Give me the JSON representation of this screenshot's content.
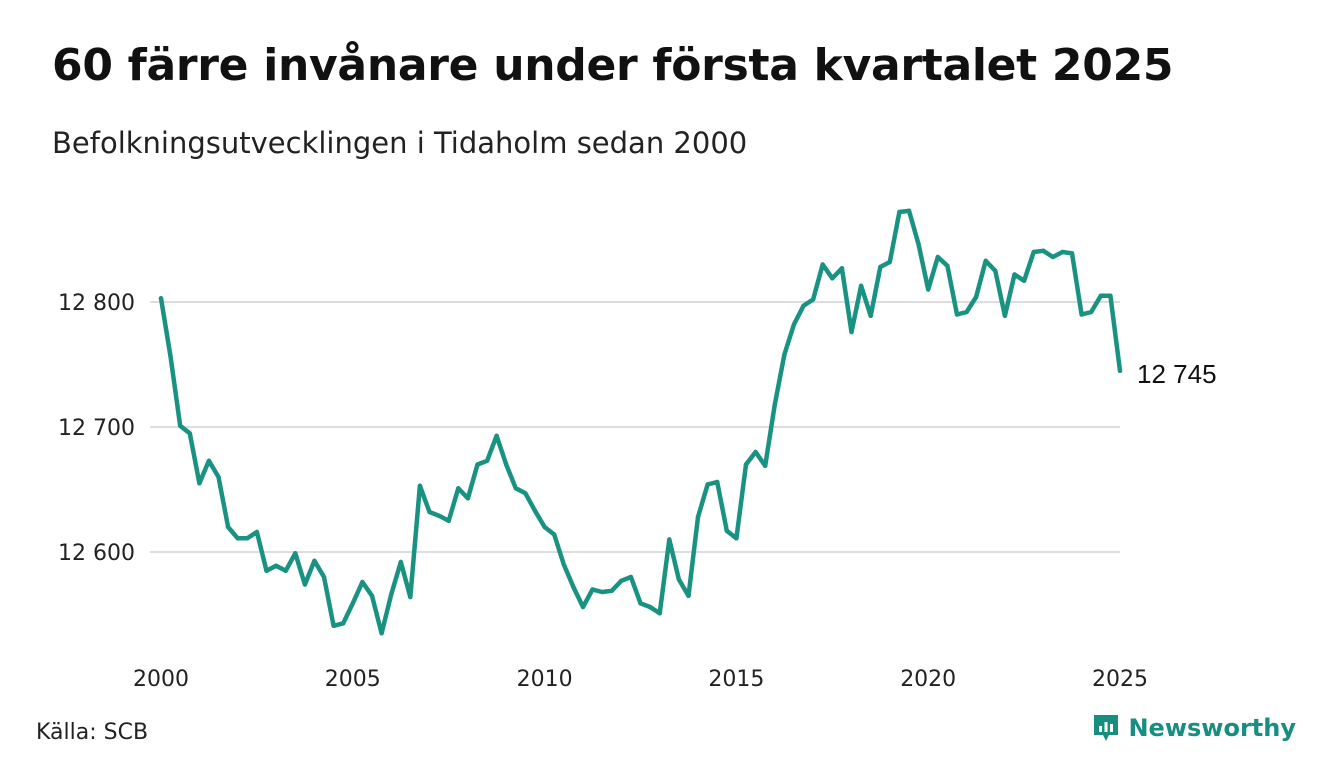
{
  "header": {
    "title": "60 färre invånare under första kvartalet 2025",
    "subtitle": "Befolkningsutvecklingen i Tidaholm sedan 2000"
  },
  "footer": {
    "source": "Källa: SCB",
    "brand": "Newsworthy",
    "brand_icon": "newsworthy-logo-icon"
  },
  "colors": {
    "line": "#1a9282",
    "grid": "#dddddd",
    "text": "#111111",
    "brand": "#178e80"
  },
  "chart_data": {
    "type": "line",
    "title": "60 färre invånare under första kvartalet 2025",
    "subtitle": "Befolkningsutvecklingen i Tidaholm sedan 2000",
    "xlabel": "",
    "ylabel": "",
    "xlim": [
      2000.0,
      2025.0
    ],
    "ylim": [
      12530,
      12880
    ],
    "grid": true,
    "x_ticks": [
      2000,
      2005,
      2010,
      2015,
      2020,
      2025
    ],
    "x_tick_labels": [
      "2000",
      "2005",
      "2010",
      "2015",
      "2020",
      "2025"
    ],
    "y_ticks": [
      12600,
      12700,
      12800
    ],
    "y_tick_labels": [
      "12 600",
      "12 700",
      "12 800"
    ],
    "end_label": "12 745",
    "series": [
      {
        "x": [
          2000.0,
          2000.25,
          2000.5,
          2000.75,
          2001.0,
          2001.25,
          2001.5,
          2001.75,
          2002.0,
          2002.25,
          2002.5,
          2002.75,
          2003.0,
          2003.25,
          2003.5,
          2003.75,
          2004.0,
          2004.25,
          2004.5,
          2004.75,
          2005.0,
          2005.25,
          2005.5,
          2005.75,
          2006.0,
          2006.25,
          2006.5,
          2006.75,
          2007.0,
          2007.25,
          2007.5,
          2007.75,
          2008.0,
          2008.25,
          2008.5,
          2008.75,
          2009.0,
          2009.25,
          2009.5,
          2009.75,
          2010.0,
          2010.25,
          2010.5,
          2010.75,
          2011.0,
          2011.25,
          2011.5,
          2011.75,
          2012.0,
          2012.25,
          2012.5,
          2012.75,
          2013.0,
          2013.25,
          2013.5,
          2013.75,
          2014.0,
          2014.25,
          2014.5,
          2014.75,
          2015.0,
          2015.25,
          2015.5,
          2015.75,
          2016.0,
          2016.25,
          2016.5,
          2016.75,
          2017.0,
          2017.25,
          2017.5,
          2017.75,
          2018.0,
          2018.25,
          2018.5,
          2018.75,
          2019.0,
          2019.25,
          2019.5,
          2019.75,
          2020.0,
          2020.25,
          2020.5,
          2020.75,
          2021.0,
          2021.25,
          2021.5,
          2021.75,
          2022.0,
          2022.25,
          2022.5,
          2022.75,
          2023.0,
          2023.25,
          2023.5,
          2023.75,
          2024.0,
          2024.25,
          2024.5,
          2024.75,
          2025.0
        ],
        "values": [
          12803,
          12756,
          12701,
          12695,
          12655,
          12673,
          12660,
          12620,
          12611,
          12611,
          12616,
          12585,
          12589,
          12585,
          12599,
          12574,
          12593,
          12580,
          12541,
          12543,
          12559,
          12576,
          12565,
          12535,
          12566,
          12592,
          12564,
          12653,
          12632,
          12629,
          12625,
          12651,
          12643,
          12670,
          12673,
          12693,
          12670,
          12651,
          12647,
          12633,
          12620,
          12614,
          12590,
          12572,
          12556,
          12570,
          12568,
          12569,
          12577,
          12580,
          12559,
          12556,
          12551,
          12610,
          12578,
          12565,
          12628,
          12654,
          12656,
          12617,
          12611,
          12670,
          12680,
          12669,
          12718,
          12758,
          12782,
          12797,
          12802,
          12830,
          12819,
          12827,
          12776,
          12813,
          12789,
          12828,
          12832,
          12872,
          12873,
          12846,
          12810,
          12836,
          12829,
          12790,
          12792,
          12804,
          12833,
          12825,
          12789,
          12822,
          12817,
          12840,
          12841,
          12836,
          12840,
          12839,
          12790,
          12792,
          12805,
          12805,
          12745
        ]
      }
    ]
  }
}
